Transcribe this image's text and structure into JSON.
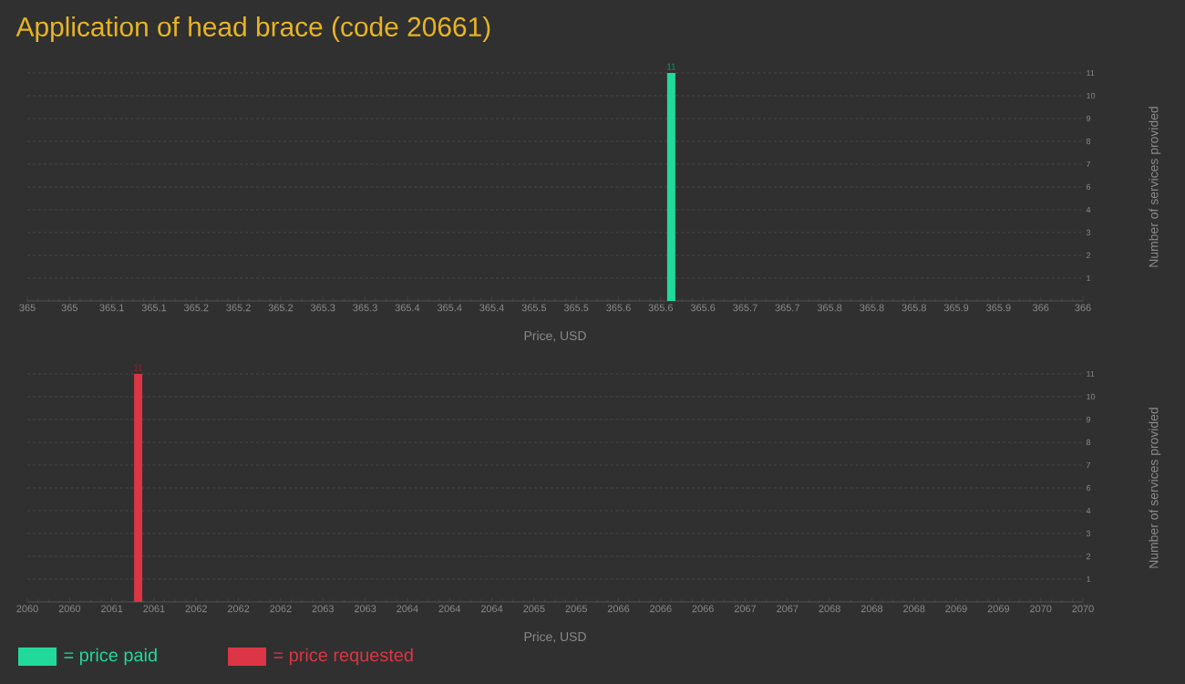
{
  "chart_data": [
    {
      "type": "bar",
      "title": "Application of head brace (code 20661)",
      "xlabel": "Price, USD",
      "ylabel": "Number of services provided",
      "xlim": [
        365,
        366
      ],
      "ylim": [
        0,
        11
      ],
      "grid": "y",
      "legend": "bottom",
      "data_labels": true,
      "xticks": [
        {
          "value": 365,
          "label": "365"
        },
        {
          "value": 365.04,
          "label": "365"
        },
        {
          "value": 365.08,
          "label": "365.1"
        },
        {
          "value": 365.12,
          "label": "365.1"
        },
        {
          "value": 365.16,
          "label": "365.2"
        },
        {
          "value": 365.2,
          "label": "365.2"
        },
        {
          "value": 365.24,
          "label": "365.2"
        },
        {
          "value": 365.28,
          "label": "365.3"
        },
        {
          "value": 365.32,
          "label": "365.3"
        },
        {
          "value": 365.36,
          "label": "365.4"
        },
        {
          "value": 365.4,
          "label": "365.4"
        },
        {
          "value": 365.44,
          "label": "365.4"
        },
        {
          "value": 365.48,
          "label": "365.5"
        },
        {
          "value": 365.52,
          "label": "365.5"
        },
        {
          "value": 365.56,
          "label": "365.6"
        },
        {
          "value": 365.6,
          "label": "365.6"
        },
        {
          "value": 365.64,
          "label": "365.6"
        },
        {
          "value": 365.68,
          "label": "365.7"
        },
        {
          "value": 365.72,
          "label": "365.7"
        },
        {
          "value": 365.76,
          "label": "365.8"
        },
        {
          "value": 365.8,
          "label": "365.8"
        },
        {
          "value": 365.84,
          "label": "365.8"
        },
        {
          "value": 365.88,
          "label": "365.9"
        },
        {
          "value": 365.92,
          "label": "365.9"
        },
        {
          "value": 365.96,
          "label": "366"
        },
        {
          "value": 366,
          "label": "366"
        }
      ],
      "yticks": [
        {
          "value": 1.1,
          "label": "1"
        },
        {
          "value": 2.2,
          "label": "2"
        },
        {
          "value": 3.3,
          "label": "3"
        },
        {
          "value": 4.4,
          "label": "4"
        },
        {
          "value": 5.5,
          "label": "6"
        },
        {
          "value": 6.6,
          "label": "7"
        },
        {
          "value": 7.7,
          "label": "8"
        },
        {
          "value": 8.8,
          "label": "9"
        },
        {
          "value": 9.9,
          "label": "10"
        },
        11
      ],
      "series": [
        {
          "name": "= price paid",
          "color": "#21d99b",
          "x": [
            365.61
          ],
          "values": [
            11
          ]
        }
      ]
    },
    {
      "type": "bar",
      "xlabel": "Price, USD",
      "ylabel": "Number of services provided",
      "xlim": [
        2060,
        2070
      ],
      "ylim": [
        0,
        11
      ],
      "grid": "y",
      "legend": "bottom",
      "data_labels": true,
      "xticks": [
        {
          "value": 2060,
          "label": "2060"
        },
        {
          "value": 2060.4,
          "label": "2060"
        },
        {
          "value": 2060.8,
          "label": "2061"
        },
        {
          "value": 2061.2,
          "label": "2061"
        },
        {
          "value": 2061.6,
          "label": "2062"
        },
        {
          "value": 2062,
          "label": "2062"
        },
        {
          "value": 2062.4,
          "label": "2062"
        },
        {
          "value": 2062.8,
          "label": "2063"
        },
        {
          "value": 2063.2,
          "label": "2063"
        },
        {
          "value": 2063.6,
          "label": "2064"
        },
        {
          "value": 2064,
          "label": "2064"
        },
        {
          "value": 2064.4,
          "label": "2064"
        },
        {
          "value": 2064.8,
          "label": "2065"
        },
        {
          "value": 2065.2,
          "label": "2065"
        },
        {
          "value": 2065.6,
          "label": "2066"
        },
        {
          "value": 2066,
          "label": "2066"
        },
        {
          "value": 2066.4,
          "label": "2066"
        },
        {
          "value": 2066.8,
          "label": "2067"
        },
        {
          "value": 2067.2,
          "label": "2067"
        },
        {
          "value": 2067.6,
          "label": "2068"
        },
        {
          "value": 2068,
          "label": "2068"
        },
        {
          "value": 2068.4,
          "label": "2068"
        },
        {
          "value": 2068.8,
          "label": "2069"
        },
        {
          "value": 2069.2,
          "label": "2069"
        },
        {
          "value": 2069.6,
          "label": "2070"
        },
        {
          "value": 2070,
          "label": "2070"
        }
      ],
      "yticks": [
        {
          "value": 1.1,
          "label": "1"
        },
        {
          "value": 2.2,
          "label": "2"
        },
        {
          "value": 3.3,
          "label": "3"
        },
        {
          "value": 4.4,
          "label": "4"
        },
        {
          "value": 5.5,
          "label": "6"
        },
        {
          "value": 6.6,
          "label": "7"
        },
        {
          "value": 7.7,
          "label": "8"
        },
        {
          "value": 8.8,
          "label": "9"
        },
        {
          "value": 9.9,
          "label": "10"
        },
        11
      ],
      "series": [
        {
          "name": "= price requested",
          "color": "#dc3545",
          "x": [
            2061.05
          ],
          "values": [
            11
          ]
        }
      ]
    }
  ]
}
